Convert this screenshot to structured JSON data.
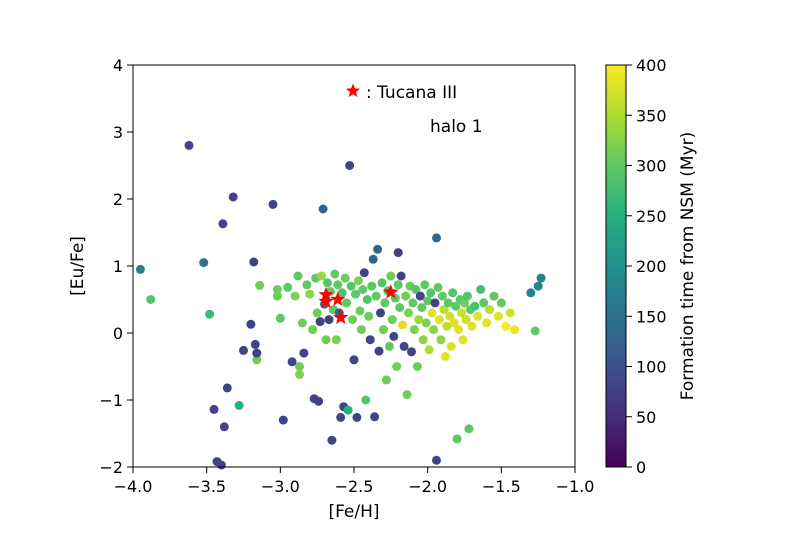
{
  "chart_data": {
    "type": "scatter",
    "title": "",
    "xlabel": "[Fe/H]",
    "ylabel": "[Eu/Fe]",
    "xlim": [
      -4.0,
      -1.0
    ],
    "ylim": [
      -2,
      4
    ],
    "xticks": [
      -4.0,
      -3.5,
      -3.0,
      -2.5,
      -2.0,
      -1.5,
      -1.0
    ],
    "xtick_labels": [
      "−4.0",
      "−3.5",
      "−3.0",
      "−2.5",
      "−2.0",
      "−1.5",
      "−1.0"
    ],
    "yticks": [
      -2,
      -1,
      0,
      1,
      2,
      3,
      4
    ],
    "ytick_labels": [
      "−2",
      "−1",
      "0",
      "1",
      "2",
      "3",
      "4"
    ],
    "grid": false,
    "colorbar": {
      "label": "Formation time from NSM (Myr)",
      "min": 0,
      "max": 400,
      "ticks": [
        0,
        50,
        100,
        150,
        200,
        250,
        300,
        350,
        400
      ],
      "colormap": "viridis"
    },
    "annotations": [
      {
        "text": ": Tucana III",
        "marker": "red-star"
      },
      {
        "text": "halo 1"
      }
    ],
    "star_color": "#ff0000",
    "tucana_iii_stars": [
      {
        "x": -2.69,
        "y": 0.57
      },
      {
        "x": -2.69,
        "y": 0.47
      },
      {
        "x": -2.61,
        "y": 0.5
      },
      {
        "x": -2.59,
        "y": 0.23
      },
      {
        "x": -2.25,
        "y": 0.61
      }
    ],
    "points": [
      {
        "x": -3.95,
        "y": 0.95,
        "t": 170
      },
      {
        "x": -3.88,
        "y": 0.5,
        "t": 290
      },
      {
        "x": -3.62,
        "y": 2.8,
        "t": 80
      },
      {
        "x": -3.52,
        "y": 1.05,
        "t": 150
      },
      {
        "x": -3.48,
        "y": 0.28,
        "t": 270
      },
      {
        "x": -3.45,
        "y": -1.14,
        "t": 80
      },
      {
        "x": -3.43,
        "y": -1.92,
        "t": 80
      },
      {
        "x": -3.4,
        "y": -1.97,
        "t": 80
      },
      {
        "x": -3.39,
        "y": 1.63,
        "t": 80
      },
      {
        "x": -3.38,
        "y": -1.4,
        "t": 80
      },
      {
        "x": -3.36,
        "y": -0.82,
        "t": 80
      },
      {
        "x": -3.32,
        "y": 2.03,
        "t": 80
      },
      {
        "x": -3.28,
        "y": -1.08,
        "t": 250
      },
      {
        "x": -3.25,
        "y": -0.26,
        "t": 80
      },
      {
        "x": -3.2,
        "y": 0.13,
        "t": 80
      },
      {
        "x": -3.18,
        "y": 1.06,
        "t": 80
      },
      {
        "x": -3.17,
        "y": -0.17,
        "t": 80
      },
      {
        "x": -3.16,
        "y": -0.4,
        "t": 310
      },
      {
        "x": -3.16,
        "y": -0.3,
        "t": 80
      },
      {
        "x": -3.14,
        "y": 0.71,
        "t": 310
      },
      {
        "x": -3.05,
        "y": 1.92,
        "t": 80
      },
      {
        "x": -3.02,
        "y": 0.55,
        "t": 310
      },
      {
        "x": -3.02,
        "y": 0.65,
        "t": 310
      },
      {
        "x": -3.0,
        "y": 0.22,
        "t": 300
      },
      {
        "x": -2.98,
        "y": -1.3,
        "t": 80
      },
      {
        "x": -2.95,
        "y": 0.68,
        "t": 300
      },
      {
        "x": -2.92,
        "y": -0.43,
        "t": 80
      },
      {
        "x": -2.9,
        "y": 0.55,
        "t": 320
      },
      {
        "x": -2.88,
        "y": 0.85,
        "t": 300
      },
      {
        "x": -2.87,
        "y": -0.5,
        "t": 310
      },
      {
        "x": -2.87,
        "y": -0.62,
        "t": 320
      },
      {
        "x": -2.85,
        "y": 0.15,
        "t": 310
      },
      {
        "x": -2.84,
        "y": -0.3,
        "t": 80
      },
      {
        "x": -2.82,
        "y": 0.72,
        "t": 300
      },
      {
        "x": -2.8,
        "y": 0.58,
        "t": 330
      },
      {
        "x": -2.78,
        "y": 0.05,
        "t": 310
      },
      {
        "x": -2.77,
        "y": -0.98,
        "t": 80
      },
      {
        "x": -2.76,
        "y": 0.82,
        "t": 300
      },
      {
        "x": -2.75,
        "y": 0.3,
        "t": 310
      },
      {
        "x": -2.74,
        "y": -1.02,
        "t": 80
      },
      {
        "x": -2.73,
        "y": 0.17,
        "t": 80
      },
      {
        "x": -2.72,
        "y": 0.85,
        "t": 340
      },
      {
        "x": -2.71,
        "y": 1.85,
        "t": 130
      },
      {
        "x": -2.7,
        "y": 0.43,
        "t": 150
      },
      {
        "x": -2.69,
        "y": -0.1,
        "t": 310
      },
      {
        "x": -2.68,
        "y": 0.75,
        "t": 290
      },
      {
        "x": -2.67,
        "y": 0.2,
        "t": 80
      },
      {
        "x": -2.66,
        "y": 0.62,
        "t": 300
      },
      {
        "x": -2.65,
        "y": -1.6,
        "t": 80
      },
      {
        "x": -2.64,
        "y": 0.35,
        "t": 300
      },
      {
        "x": -2.63,
        "y": 0.88,
        "t": 300
      },
      {
        "x": -2.62,
        "y": -0.1,
        "t": 320
      },
      {
        "x": -2.61,
        "y": 0.72,
        "t": 300
      },
      {
        "x": -2.6,
        "y": 0.3,
        "t": 130
      },
      {
        "x": -2.59,
        "y": -1.26,
        "t": 80
      },
      {
        "x": -2.58,
        "y": 0.6,
        "t": 290
      },
      {
        "x": -2.57,
        "y": -1.1,
        "t": 80
      },
      {
        "x": -2.56,
        "y": 0.82,
        "t": 310
      },
      {
        "x": -2.55,
        "y": 0.45,
        "t": 300
      },
      {
        "x": -2.54,
        "y": -1.15,
        "t": 250
      },
      {
        "x": -2.53,
        "y": 2.5,
        "t": 80
      },
      {
        "x": -2.52,
        "y": 0.7,
        "t": 290
      },
      {
        "x": -2.51,
        "y": 0.2,
        "t": 310
      },
      {
        "x": -2.5,
        "y": -0.4,
        "t": 80
      },
      {
        "x": -2.49,
        "y": 0.58,
        "t": 300
      },
      {
        "x": -2.48,
        "y": -1.26,
        "t": 80
      },
      {
        "x": -2.47,
        "y": 0.78,
        "t": 320
      },
      {
        "x": -2.46,
        "y": 0.33,
        "t": 310
      },
      {
        "x": -2.45,
        "y": 0.05,
        "t": 310
      },
      {
        "x": -2.44,
        "y": 0.65,
        "t": 300
      },
      {
        "x": -2.43,
        "y": 0.9,
        "t": 80
      },
      {
        "x": -2.42,
        "y": -1.0,
        "t": 290
      },
      {
        "x": -2.41,
        "y": 0.5,
        "t": 290
      },
      {
        "x": -2.4,
        "y": 0.25,
        "t": 310
      },
      {
        "x": -2.39,
        "y": -0.1,
        "t": 80
      },
      {
        "x": -2.38,
        "y": 0.7,
        "t": 300
      },
      {
        "x": -2.37,
        "y": 1.1,
        "t": 130
      },
      {
        "x": -2.36,
        "y": -1.25,
        "t": 80
      },
      {
        "x": -2.35,
        "y": 0.55,
        "t": 300
      },
      {
        "x": -2.34,
        "y": 1.25,
        "t": 130
      },
      {
        "x": -2.33,
        "y": -0.27,
        "t": 80
      },
      {
        "x": -2.32,
        "y": 0.3,
        "t": 80
      },
      {
        "x": -2.31,
        "y": 0.75,
        "t": 290
      },
      {
        "x": -2.3,
        "y": 0.05,
        "t": 310
      },
      {
        "x": -2.29,
        "y": 0.45,
        "t": 300
      },
      {
        "x": -2.28,
        "y": -0.7,
        "t": 310
      },
      {
        "x": -2.27,
        "y": 0.63,
        "t": 280
      },
      {
        "x": -2.26,
        "y": -0.2,
        "t": 300
      },
      {
        "x": -2.25,
        "y": 0.85,
        "t": 310
      },
      {
        "x": -2.24,
        "y": 0.2,
        "t": 310
      },
      {
        "x": -2.23,
        "y": -0.05,
        "t": 80
      },
      {
        "x": -2.22,
        "y": 0.52,
        "t": 300
      },
      {
        "x": -2.21,
        "y": -0.5,
        "t": 310
      },
      {
        "x": -2.2,
        "y": 0.72,
        "t": 300
      },
      {
        "x": -2.2,
        "y": 1.2,
        "t": 80
      },
      {
        "x": -2.19,
        "y": 0.38,
        "t": 300
      },
      {
        "x": -2.18,
        "y": 0.85,
        "t": 80
      },
      {
        "x": -2.17,
        "y": 0.12,
        "t": 380
      },
      {
        "x": -2.16,
        "y": -0.2,
        "t": 80
      },
      {
        "x": -2.15,
        "y": 0.55,
        "t": 310
      },
      {
        "x": -2.14,
        "y": -0.92,
        "t": 310
      },
      {
        "x": -2.13,
        "y": 0.3,
        "t": 320
      },
      {
        "x": -2.12,
        "y": 0.7,
        "t": 310
      },
      {
        "x": -2.11,
        "y": -0.28,
        "t": 80
      },
      {
        "x": -2.1,
        "y": 0.45,
        "t": 300
      },
      {
        "x": -2.09,
        "y": 0.05,
        "t": 320
      },
      {
        "x": -2.08,
        "y": 0.65,
        "t": 290
      },
      {
        "x": -2.07,
        "y": -0.5,
        "t": 310
      },
      {
        "x": -2.06,
        "y": 0.2,
        "t": 340
      },
      {
        "x": -2.05,
        "y": 0.55,
        "t": 80
      },
      {
        "x": -2.04,
        "y": 0.38,
        "t": 300
      },
      {
        "x": -2.03,
        "y": -0.1,
        "t": 330
      },
      {
        "x": -2.02,
        "y": 0.72,
        "t": 300
      },
      {
        "x": -2.01,
        "y": 0.15,
        "t": 320
      },
      {
        "x": -2.0,
        "y": 0.48,
        "t": 300
      },
      {
        "x": -1.99,
        "y": -0.25,
        "t": 350
      },
      {
        "x": -1.98,
        "y": 0.6,
        "t": 290
      },
      {
        "x": -1.97,
        "y": 0.3,
        "t": 380
      },
      {
        "x": -1.96,
        "y": 0.05,
        "t": 330
      },
      {
        "x": -1.95,
        "y": 0.45,
        "t": 80
      },
      {
        "x": -1.94,
        "y": 1.42,
        "t": 130
      },
      {
        "x": -1.94,
        "y": -1.9,
        "t": 80
      },
      {
        "x": -1.93,
        "y": 0.68,
        "t": 300
      },
      {
        "x": -1.92,
        "y": 0.2,
        "t": 380
      },
      {
        "x": -1.91,
        "y": -0.1,
        "t": 330
      },
      {
        "x": -1.9,
        "y": 0.55,
        "t": 300
      },
      {
        "x": -1.89,
        "y": 0.35,
        "t": 360
      },
      {
        "x": -1.88,
        "y": -0.35,
        "t": 380
      },
      {
        "x": -1.87,
        "y": 0.1,
        "t": 360
      },
      {
        "x": -1.86,
        "y": 0.45,
        "t": 300
      },
      {
        "x": -1.85,
        "y": 0.25,
        "t": 370
      },
      {
        "x": -1.84,
        "y": -0.2,
        "t": 380
      },
      {
        "x": -1.83,
        "y": 0.6,
        "t": 290
      },
      {
        "x": -1.82,
        "y": 0.15,
        "t": 380
      },
      {
        "x": -1.81,
        "y": 0.4,
        "t": 300
      },
      {
        "x": -1.8,
        "y": -1.58,
        "t": 300
      },
      {
        "x": -1.79,
        "y": 0.05,
        "t": 380
      },
      {
        "x": -1.78,
        "y": 0.5,
        "t": 300
      },
      {
        "x": -1.77,
        "y": 0.3,
        "t": 370
      },
      {
        "x": -1.76,
        "y": -0.1,
        "t": 380
      },
      {
        "x": -1.75,
        "y": 0.45,
        "t": 310
      },
      {
        "x": -1.74,
        "y": 0.2,
        "t": 370
      },
      {
        "x": -1.73,
        "y": 0.55,
        "t": 290
      },
      {
        "x": -1.72,
        "y": -1.43,
        "t": 300
      },
      {
        "x": -1.71,
        "y": 0.35,
        "t": 300
      },
      {
        "x": -1.7,
        "y": 0.1,
        "t": 380
      },
      {
        "x": -1.68,
        "y": 0.4,
        "t": 280
      },
      {
        "x": -1.66,
        "y": 0.25,
        "t": 380
      },
      {
        "x": -1.64,
        "y": 0.65,
        "t": 280
      },
      {
        "x": -1.62,
        "y": 0.45,
        "t": 300
      },
      {
        "x": -1.6,
        "y": 0.15,
        "t": 380
      },
      {
        "x": -1.58,
        "y": 0.35,
        "t": 360
      },
      {
        "x": -1.55,
        "y": 0.55,
        "t": 300
      },
      {
        "x": -1.52,
        "y": 0.25,
        "t": 380
      },
      {
        "x": -1.5,
        "y": 0.45,
        "t": 300
      },
      {
        "x": -1.47,
        "y": 0.1,
        "t": 400
      },
      {
        "x": -1.44,
        "y": 0.3,
        "t": 370
      },
      {
        "x": -1.41,
        "y": 0.05,
        "t": 390
      },
      {
        "x": -1.3,
        "y": 0.6,
        "t": 180
      },
      {
        "x": -1.27,
        "y": 0.03,
        "t": 300
      },
      {
        "x": -1.25,
        "y": 0.7,
        "t": 180
      },
      {
        "x": -1.23,
        "y": 0.82,
        "t": 180
      }
    ]
  }
}
